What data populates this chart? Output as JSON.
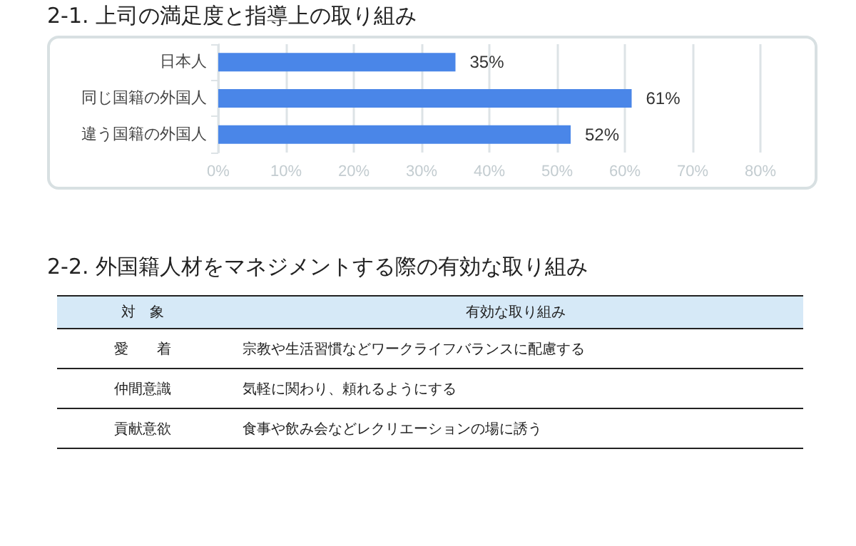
{
  "chart_data": [
    {
      "type": "bar",
      "title": "2-1. 上司の満足度と指導上の取り組み",
      "orientation": "horizontal",
      "categories": [
        "日本人",
        "同じ国籍の外国人",
        "違う国籍の外国人"
      ],
      "values": [
        35,
        61,
        52
      ],
      "value_labels": [
        "35%",
        "61%",
        "52%"
      ],
      "color": "#4a86e8",
      "xlim": [
        0,
        80
      ],
      "xticks": [
        {
          "value": 0,
          "label": "0%"
        },
        {
          "value": 10,
          "label": "10%"
        },
        {
          "value": 20,
          "label": "20%"
        },
        {
          "value": 30,
          "label": "30%"
        },
        {
          "value": 40,
          "label": "40%"
        },
        {
          "value": 50,
          "label": "50%"
        },
        {
          "value": 60,
          "label": "60%"
        },
        {
          "value": 70,
          "label": "70%"
        },
        {
          "value": 80,
          "label": "80%"
        }
      ],
      "grid": "x"
    },
    {
      "type": "other",
      "title": "2-2. 外国籍人材をマネジメントする際の有効な取り組み",
      "annotations": [
        "対　象",
        "有効な取り組み",
        "愛　　着",
        "宗教や生活習慣などワークライフバランスに配慮する",
        "仲間意識",
        "気軽に関わり、頼れるようにする",
        "貢献意欲",
        "食事や飲み会などレクリエーションの場に誘う"
      ]
    }
  ]
}
